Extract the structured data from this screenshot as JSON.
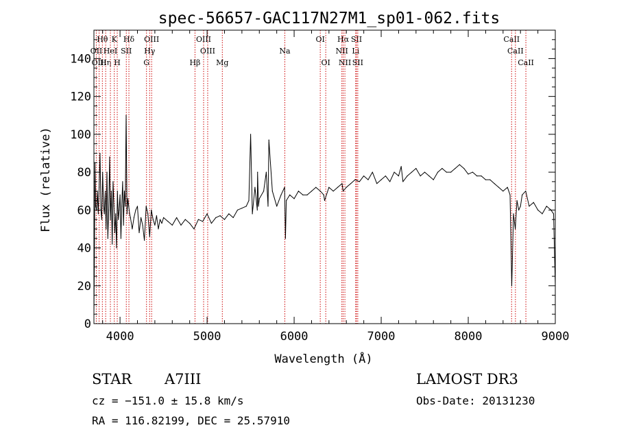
{
  "chart_data": {
    "type": "line",
    "title": "spec-56657-GAC117N27M1_sp01-062.fits",
    "xlabel": "Wavelength (Å)",
    "ylabel": "Flux (relative)",
    "xlim": [
      3700,
      9000
    ],
    "ylim": [
      0,
      155
    ],
    "xticks": [
      4000,
      5000,
      6000,
      7000,
      8000,
      9000
    ],
    "yticks": [
      0,
      20,
      40,
      60,
      80,
      100,
      120,
      140
    ],
    "grid": false,
    "line_color": "#000000",
    "marker_color": "#cc0000",
    "series": [
      {
        "x": [
          3700,
          3705,
          3712,
          3720,
          3730,
          3740,
          3750,
          3760,
          3770,
          3780,
          3790,
          3800,
          3810,
          3820,
          3830,
          3840,
          3850,
          3860,
          3870,
          3880,
          3890,
          3900,
          3910,
          3920,
          3930,
          3940,
          3950,
          3960,
          3970,
          3980,
          3990,
          4000,
          4010,
          4020,
          4030,
          4040,
          4050,
          4060,
          4070,
          4080,
          4090,
          4100,
          4110,
          4120,
          4140,
          4160,
          4180,
          4200,
          4220,
          4240,
          4260,
          4280,
          4300,
          4320,
          4340,
          4360,
          4380,
          4400,
          4420,
          4440,
          4460,
          4480,
          4500,
          4550,
          4600,
          4650,
          4700,
          4750,
          4800,
          4850,
          4900,
          4950,
          5000,
          5050,
          5100,
          5150,
          5200,
          5250,
          5300,
          5350,
          5400,
          5450,
          5480,
          5500,
          5520,
          5550,
          5577,
          5580,
          5590,
          5600,
          5650,
          5680,
          5700,
          5710,
          5750,
          5800,
          5850,
          5890,
          5900,
          5910,
          5950,
          6000,
          6050,
          6100,
          6150,
          6200,
          6250,
          6300,
          6340,
          6350,
          6400,
          6450,
          6500,
          6550,
          6563,
          6600,
          6650,
          6700,
          6750,
          6800,
          6850,
          6900,
          6950,
          7000,
          7050,
          7100,
          7150,
          7200,
          7230,
          7250,
          7300,
          7350,
          7400,
          7450,
          7500,
          7550,
          7600,
          7650,
          7700,
          7750,
          7800,
          7850,
          7900,
          7950,
          8000,
          8050,
          8100,
          8150,
          8200,
          8250,
          8300,
          8350,
          8400,
          8450,
          8480,
          8500,
          8520,
          8540,
          8560,
          8580,
          8600,
          8620,
          8660,
          8700,
          8750,
          8800,
          8850,
          8900,
          8950,
          8980,
          9000
        ],
        "y": [
          5,
          30,
          85,
          62,
          60,
          70,
          58,
          72,
          90,
          60,
          55,
          80,
          62,
          58,
          70,
          50,
          80,
          45,
          60,
          88,
          55,
          70,
          42,
          75,
          62,
          48,
          58,
          40,
          70,
          55,
          60,
          68,
          45,
          62,
          75,
          52,
          70,
          62,
          110,
          58,
          66,
          62,
          58,
          56,
          50,
          56,
          60,
          62,
          48,
          56,
          52,
          44,
          62,
          58,
          46,
          60,
          55,
          52,
          57,
          50,
          55,
          53,
          56,
          54,
          52,
          56,
          52,
          55,
          53,
          50,
          55,
          54,
          58,
          53,
          56,
          57,
          55,
          58,
          56,
          60,
          61,
          62,
          65,
          100,
          58,
          72,
          60,
          80,
          62,
          66,
          70,
          80,
          62,
          97,
          70,
          62,
          68,
          72,
          45,
          65,
          68,
          66,
          70,
          68,
          68,
          70,
          72,
          70,
          68,
          65,
          72,
          70,
          72,
          74,
          70,
          72,
          74,
          76,
          75,
          78,
          76,
          80,
          74,
          76,
          78,
          75,
          80,
          78,
          83,
          75,
          78,
          80,
          82,
          78,
          80,
          78,
          76,
          80,
          82,
          80,
          80,
          82,
          84,
          82,
          79,
          80,
          78,
          78,
          76,
          76,
          74,
          72,
          70,
          72,
          68,
          20,
          58,
          50,
          65,
          60,
          62,
          68,
          70,
          62,
          64,
          60,
          58,
          62,
          60,
          58,
          20
        ]
      }
    ],
    "line_markers": [
      {
        "label": "Hθ",
        "x": 3797,
        "row": 1
      },
      {
        "label": "OII",
        "x": 3727,
        "row": 2
      },
      {
        "label": "OIII",
        "x": 3760,
        "row": 3
      },
      {
        "label": "Hη",
        "x": 3835,
        "row": 3
      },
      {
        "label": "K",
        "x": 3934,
        "row": 1
      },
      {
        "label": "HeI",
        "x": 3889,
        "row": 2
      },
      {
        "label": "H",
        "x": 3968,
        "row": 3
      },
      {
        "label": "Hδ",
        "x": 4102,
        "row": 1
      },
      {
        "label": "SII",
        "x": 4072,
        "row": 2
      },
      {
        "label": "OIII",
        "x": 4363,
        "row": 1
      },
      {
        "label": "Hγ",
        "x": 4340,
        "row": 2
      },
      {
        "label": "G",
        "x": 4304,
        "row": 3
      },
      {
        "label": "OIII",
        "x": 4960,
        "row": 1
      },
      {
        "label": "OIII",
        "x": 5007,
        "row": 2
      },
      {
        "label": "Hβ",
        "x": 4861,
        "row": 3
      },
      {
        "label": "Mg",
        "x": 5175,
        "row": 3
      },
      {
        "label": "Na",
        "x": 5893,
        "row": 2
      },
      {
        "label": "OI",
        "x": 6300,
        "row": 1
      },
      {
        "label": "OI",
        "x": 6363,
        "row": 3
      },
      {
        "label": "Hα",
        "x": 6563,
        "row": 1
      },
      {
        "label": "SII",
        "x": 6716,
        "row": 1
      },
      {
        "label": "NII",
        "x": 6548,
        "row": 2
      },
      {
        "label": "Li",
        "x": 6707,
        "row": 2
      },
      {
        "label": "NII",
        "x": 6583,
        "row": 3
      },
      {
        "label": "SII",
        "x": 6731,
        "row": 3
      },
      {
        "label": "CaII",
        "x": 8498,
        "row": 1
      },
      {
        "label": "CaII",
        "x": 8542,
        "row": 2
      },
      {
        "label": "CaII",
        "x": 8662,
        "row": 3
      }
    ]
  },
  "info": {
    "object_class": "STAR",
    "subclass": "A7III",
    "survey": "LAMOST DR3",
    "cz": "cz = −151.0 ± 15.8 km/s",
    "obs_date": "Obs-Date: 20131230",
    "coords": "RA = 116.82199, DEC =  25.57910"
  }
}
